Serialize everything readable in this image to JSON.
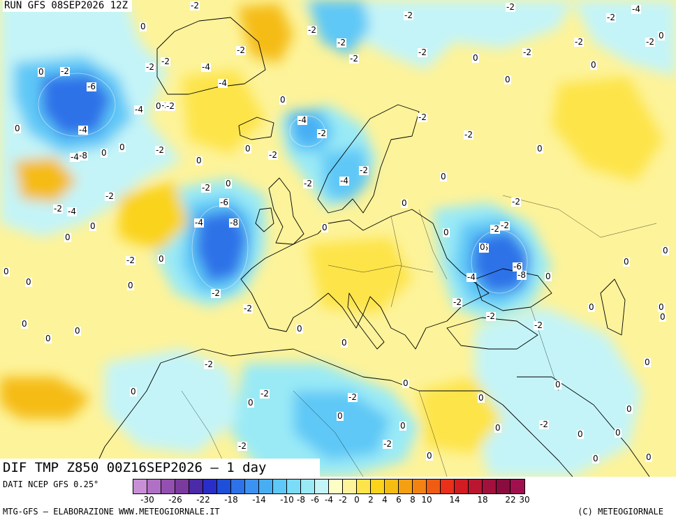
{
  "header": {
    "run_label": "RUN GFS 08SEP2026 12Z"
  },
  "field_label": "DIF TMP Z850 00Z16SEP2026 – 1 day",
  "footer": {
    "source": "DATI NCEP GFS 0.25°",
    "elaboration": "MTG-GFS – ELABORAZIONE WWW.METEOGIORNALE.IT",
    "copyright": "(C) METEOGIORNALE"
  },
  "legend": {
    "colors": [
      "#c98fd6",
      "#b070c4",
      "#9350b0",
      "#7a3a9e",
      "#4a2aa6",
      "#2a2ec8",
      "#1e4fd8",
      "#2d72e8",
      "#3c92f0",
      "#47aef4",
      "#5ec8f6",
      "#7adcf6",
      "#9aeaf6",
      "#c4f4f8",
      "#fdfdc6",
      "#fdf39a",
      "#fde44a",
      "#fad31a",
      "#f5bc12",
      "#f4a012",
      "#f28212",
      "#ef5c12",
      "#e8301a",
      "#d21c22",
      "#ba1630",
      "#a2103c",
      "#8a0c3e",
      "#a0104e"
    ],
    "ticks": [
      "-30",
      "-26",
      "-22",
      "-18",
      "-14",
      "-10",
      "-8",
      "-6",
      "-4",
      "-2",
      "0",
      "2",
      "4",
      "6",
      "8",
      "10",
      "14",
      "18",
      "22",
      "30"
    ]
  },
  "contour_labels": [
    {
      "t": "-2"
    },
    {
      "t": "-2"
    },
    {
      "t": "-4"
    },
    {
      "t": "-2"
    },
    {
      "t": "-2"
    },
    {
      "t": "0"
    },
    {
      "t": "-2"
    },
    {
      "t": "-2"
    },
    {
      "t": "-2"
    },
    {
      "t": "0"
    },
    {
      "t": "-2"
    },
    {
      "t": "-2"
    },
    {
      "t": "-2"
    },
    {
      "t": "-2"
    },
    {
      "t": "-4"
    },
    {
      "t": "-2"
    },
    {
      "t": "-2"
    },
    {
      "t": "-2"
    },
    {
      "t": "-2"
    },
    {
      "t": "0"
    },
    {
      "t": "-2"
    },
    {
      "t": "-4"
    },
    {
      "t": "-2"
    },
    {
      "t": "-2"
    },
    {
      "t": "0"
    },
    {
      "t": "0"
    },
    {
      "t": "0"
    },
    {
      "t": "-6"
    },
    {
      "t": "-4"
    },
    {
      "t": "0"
    },
    {
      "t": "0"
    },
    {
      "t": "-2"
    },
    {
      "t": "-4"
    },
    {
      "t": "0"
    },
    {
      "t": "-8"
    },
    {
      "t": "0"
    },
    {
      "t": "-4"
    },
    {
      "t": "-2"
    },
    {
      "t": "0"
    },
    {
      "t": "0"
    },
    {
      "t": "-4"
    },
    {
      "t": "0"
    },
    {
      "t": "0"
    },
    {
      "t": "-2"
    },
    {
      "t": "-2"
    },
    {
      "t": "0"
    },
    {
      "t": "0"
    },
    {
      "t": "-2"
    },
    {
      "t": "-2"
    },
    {
      "t": "-2"
    },
    {
      "t": "-4"
    },
    {
      "t": "0"
    },
    {
      "t": "-2"
    },
    {
      "t": "-2"
    },
    {
      "t": "-4"
    },
    {
      "t": "-6"
    },
    {
      "t": "0"
    },
    {
      "t": "-4"
    },
    {
      "t": "-8"
    },
    {
      "t": "0"
    },
    {
      "t": "-2"
    },
    {
      "t": "0"
    },
    {
      "t": "0"
    },
    {
      "t": "0"
    },
    {
      "t": "-2"
    },
    {
      "t": "-2"
    },
    {
      "t": "-2"
    },
    {
      "t": "0"
    },
    {
      "t": "-6"
    },
    {
      "t": "0"
    },
    {
      "t": "0"
    },
    {
      "t": "-6"
    },
    {
      "t": "-4"
    },
    {
      "t": "-8"
    },
    {
      "t": "0"
    },
    {
      "t": "0"
    },
    {
      "t": "-2"
    },
    {
      "t": "-2"
    },
    {
      "t": "0"
    },
    {
      "t": "0"
    },
    {
      "t": "-2"
    },
    {
      "t": "0"
    },
    {
      "t": "0"
    },
    {
      "t": "-2"
    },
    {
      "t": "0"
    },
    {
      "t": "0"
    },
    {
      "t": "0"
    },
    {
      "t": "-2"
    },
    {
      "t": "0"
    },
    {
      "t": "0"
    },
    {
      "t": "0"
    },
    {
      "t": "-2"
    },
    {
      "t": "-2"
    },
    {
      "t": "-2"
    },
    {
      "t": "0"
    },
    {
      "t": "0"
    },
    {
      "t": "0"
    },
    {
      "t": "-2"
    },
    {
      "t": "-2"
    },
    {
      "t": "0"
    },
    {
      "t": "-2"
    },
    {
      "t": "0"
    },
    {
      "t": "0"
    },
    {
      "t": "0"
    },
    {
      "t": "0"
    },
    {
      "t": "0"
    },
    {
      "t": "0"
    },
    {
      "t": "0"
    },
    {
      "t": "0"
    },
    {
      "t": "0"
    },
    {
      "t": "0"
    },
    {
      "t": "0"
    },
    {
      "t": "0"
    }
  ]
}
